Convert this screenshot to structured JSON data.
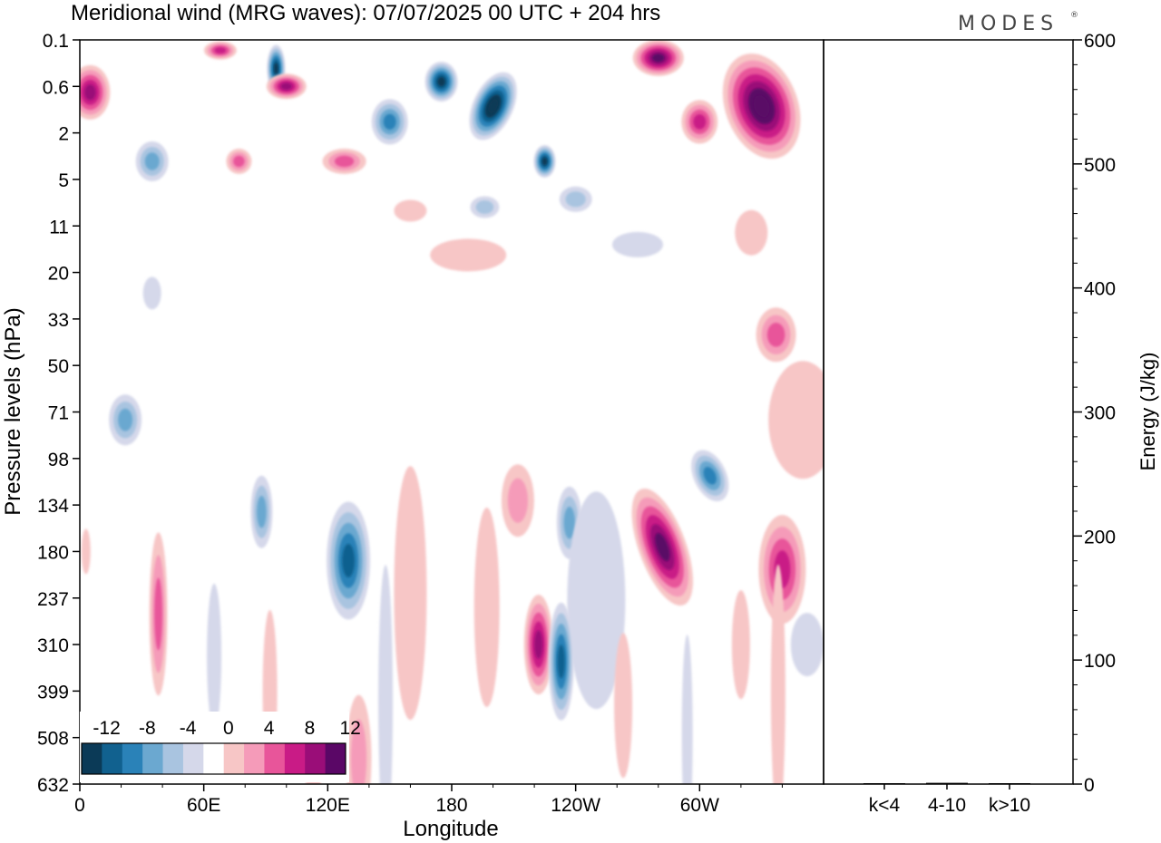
{
  "header": {
    "title": "Meridional wind (MRG waves):  07/07/2025  00 UTC  + 204 hrs",
    "logo": "MODES",
    "logo_mark": "®"
  },
  "chart_data": [
    {
      "type": "heatmap",
      "title": "Meridional wind (MRG waves):  07/07/2025  00 UTC  + 204 hrs",
      "xlabel": "Longitude",
      "ylabel": "Pressure levels (hPa)",
      "x_ticks": [
        "0",
        "60E",
        "120E",
        "180",
        "120W",
        "60W"
      ],
      "x_range_deg": [
        0,
        360
      ],
      "y_levels": [
        "0.1",
        "0.6",
        "2",
        "5",
        "11",
        "20",
        "33",
        "50",
        "71",
        "98",
        "134",
        "180",
        "237",
        "310",
        "399",
        "508",
        "632"
      ],
      "colorbar": {
        "labels": [
          "-12",
          "-8",
          "-4",
          "0",
          "4",
          "8",
          "12"
        ],
        "levels": [
          -14,
          -12,
          -10,
          -8,
          -6,
          -4,
          -2,
          2,
          4,
          6,
          8,
          10,
          12,
          14
        ],
        "colors": [
          "#0b3a57",
          "#11618f",
          "#2a82b8",
          "#6ba8d0",
          "#a9c4e0",
          "#d5d8ea",
          "#ffffff",
          "#f7c6c6",
          "#f59bb9",
          "#e8559a",
          "#c91b86",
          "#9a0d78",
          "#5a0766"
        ]
      },
      "features": [
        {
          "lon": 100,
          "p": 0.6,
          "value": 11
        },
        {
          "lon": 110,
          "p": 0.2,
          "value": -12
        },
        {
          "lon": 200,
          "p": 1.2,
          "value": -14
        },
        {
          "lon": 225,
          "p": 3.5,
          "value": -12
        },
        {
          "lon": 325,
          "p": 0.9,
          "value": 14
        },
        {
          "lon": 5,
          "p": 0.7,
          "value": 10
        },
        {
          "lon": 130,
          "p": 190,
          "value": -9
        },
        {
          "lon": 282,
          "p": 175,
          "value": 10
        },
        {
          "lon": 233,
          "p": 330,
          "value": -10
        },
        {
          "lon": 222,
          "p": 310,
          "value": 9
        },
        {
          "lon": 305,
          "p": 112,
          "value": -8
        },
        {
          "lon": 340,
          "p": 200,
          "value": 7
        },
        {
          "lon": 335,
          "p": 38,
          "value": 6
        }
      ]
    },
    {
      "type": "bar",
      "ylabel": "Energy (J/kg)",
      "ylim": [
        0,
        600
      ],
      "y_ticks": [
        "0",
        "100",
        "200",
        "300",
        "400",
        "500",
        "600"
      ],
      "categories": [
        "k<4",
        "4-10",
        "k>10"
      ],
      "values": [
        0.5,
        1.0,
        0.2
      ]
    }
  ]
}
